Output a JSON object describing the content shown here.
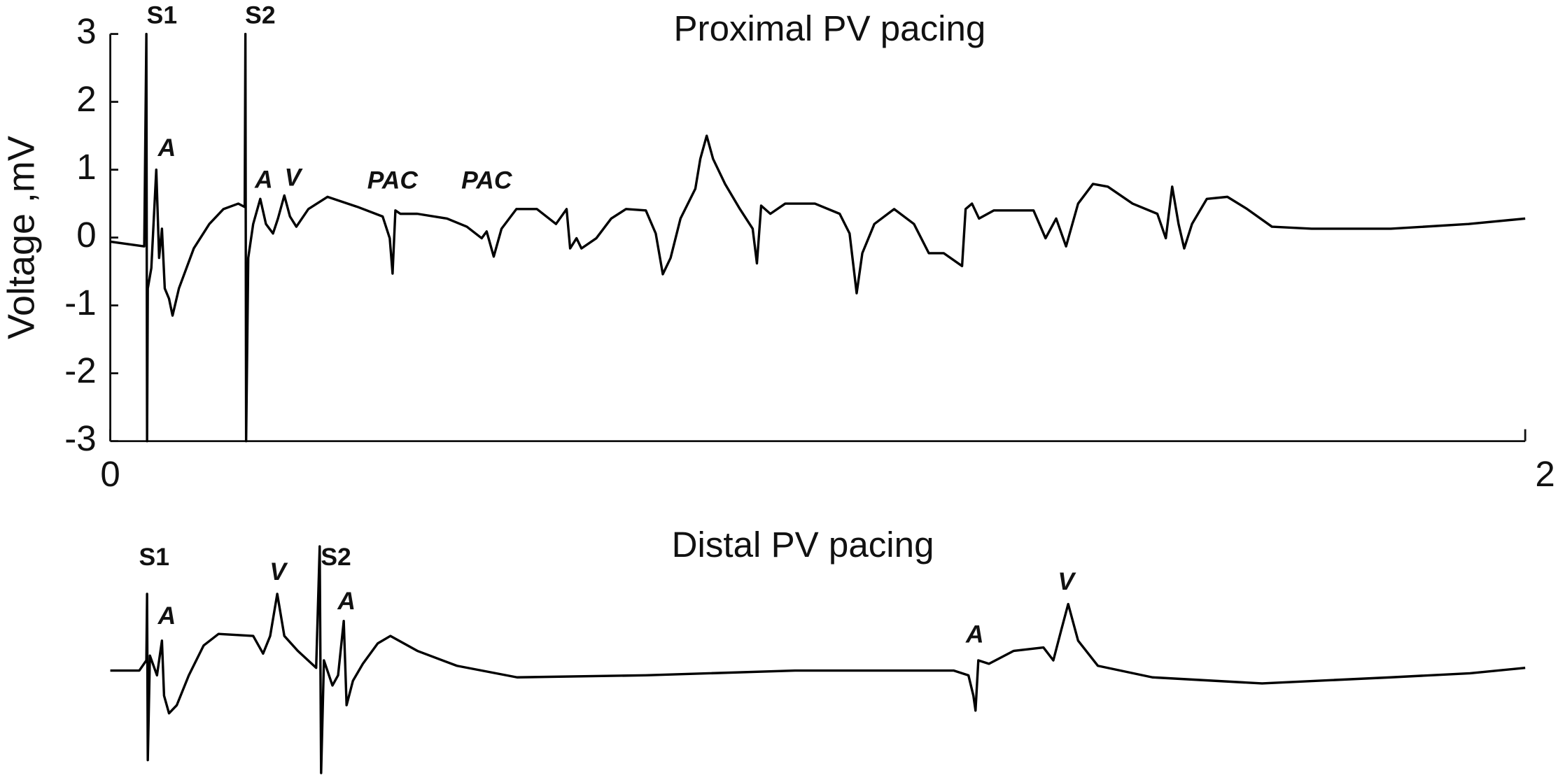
{
  "chart_data": [
    {
      "type": "line",
      "title": "Proximal PV pacing",
      "ylabel": "Voltage ,mV",
      "color": "#000000",
      "xlim": [
        0,
        2
      ],
      "xticks": [
        0,
        {
          "value": 2,
          "label": "2 s"
        }
      ],
      "ylim": [
        -3,
        3
      ],
      "yticks": [
        -3,
        -2,
        -1,
        0,
        1,
        2,
        3
      ],
      "x": [
        0,
        0.048,
        0.051,
        0.052,
        0.053,
        0.058,
        0.065,
        0.069,
        0.073,
        0.077,
        0.083,
        0.088,
        0.097,
        0.118,
        0.14,
        0.16,
        0.181,
        0.19,
        0.191,
        0.192,
        0.195,
        0.202,
        0.212,
        0.22,
        0.23,
        0.237,
        0.246,
        0.254,
        0.263,
        0.28,
        0.307,
        0.35,
        0.385,
        0.395,
        0.399,
        0.403,
        0.41,
        0.434,
        0.476,
        0.504,
        0.525,
        0.532,
        0.542,
        0.553,
        0.574,
        0.603,
        0.63,
        0.645,
        0.65,
        0.659,
        0.666,
        0.687,
        0.708,
        0.729,
        0.757,
        0.771,
        0.781,
        0.792,
        0.806,
        0.827,
        0.834,
        0.843,
        0.852,
        0.869,
        0.89,
        0.908,
        0.914,
        0.92,
        0.933,
        0.954,
        0.996,
        1.031,
        1.045,
        1.055,
        1.063,
        1.08,
        1.108,
        1.136,
        1.157,
        1.178,
        1.204,
        1.209,
        1.218,
        1.228,
        1.249,
        1.305,
        1.322,
        1.337,
        1.351,
        1.368,
        1.389,
        1.41,
        1.445,
        1.48,
        1.492,
        1.501,
        1.51,
        1.518,
        1.529,
        1.55,
        1.579,
        1.607,
        1.642,
        1.698,
        1.81,
        1.92,
        2.0
      ],
      "values": [
        -0.06,
        -0.13,
        3.0,
        -3.0,
        -0.75,
        -0.45,
        1.0,
        -0.3,
        0.13,
        -0.75,
        -0.9,
        -1.15,
        -0.75,
        -0.16,
        0.2,
        0.42,
        0.5,
        0.45,
        3.0,
        -3.0,
        -0.3,
        0.2,
        0.57,
        0.2,
        0.06,
        0.28,
        0.62,
        0.31,
        0.16,
        0.42,
        0.6,
        0.45,
        0.31,
        -0.01,
        -0.53,
        0.4,
        0.35,
        0.35,
        0.28,
        0.16,
        -0.01,
        0.09,
        -0.28,
        0.13,
        0.42,
        0.42,
        0.2,
        0.42,
        -0.16,
        -0.01,
        -0.16,
        -0.01,
        0.28,
        0.42,
        0.4,
        0.06,
        -0.54,
        -0.3,
        0.28,
        0.72,
        1.16,
        1.5,
        1.16,
        0.79,
        0.42,
        0.13,
        -0.38,
        0.47,
        0.35,
        0.5,
        0.5,
        0.35,
        0.06,
        -0.82,
        -0.23,
        0.2,
        0.42,
        0.2,
        -0.23,
        -0.23,
        -0.42,
        0.42,
        0.5,
        0.28,
        0.4,
        0.4,
        -0.01,
        0.28,
        -0.13,
        0.5,
        0.79,
        0.75,
        0.5,
        0.35,
        -0.01,
        0.75,
        0.2,
        -0.16,
        0.2,
        0.57,
        0.6,
        0.42,
        0.16,
        0.13,
        0.13,
        0.2,
        0.28
      ],
      "annotations": [
        {
          "text": "S1",
          "x": 0.073,
          "y": 3.25
        },
        {
          "text": "S2",
          "x": 0.212,
          "y": 3.25
        },
        {
          "text": "A",
          "x": 0.08,
          "y": 1.3
        },
        {
          "text": "A",
          "x": 0.217,
          "y": 0.83
        },
        {
          "text": "V",
          "x": 0.258,
          "y": 0.86
        },
        {
          "text": "PAC",
          "x": 0.399,
          "y": 0.82
        },
        {
          "text": "PAC",
          "x": 0.532,
          "y": 0.82
        }
      ]
    },
    {
      "type": "line",
      "title": "Distal PV pacing",
      "color": "#000000",
      "x": [
        0,
        0.041,
        0.051,
        0.052,
        0.053,
        0.056,
        0.066,
        0.073,
        0.076,
        0.083,
        0.094,
        0.111,
        0.132,
        0.153,
        0.202,
        0.216,
        0.226,
        0.236,
        0.246,
        0.265,
        0.291,
        0.296,
        0.298,
        0.302,
        0.314,
        0.322,
        0.33,
        0.334,
        0.343,
        0.357,
        0.378,
        0.396,
        0.434,
        0.49,
        0.575,
        0.757,
        0.968,
        1.192,
        1.213,
        1.22,
        1.223,
        1.227,
        1.242,
        1.277,
        1.319,
        1.333,
        1.344,
        1.354,
        1.368,
        1.396,
        1.473,
        1.628,
        1.81,
        1.922,
        2.0
      ],
      "values": [
        0,
        0,
        0.15,
        1.13,
        -1.32,
        0.22,
        -0.07,
        0.44,
        -0.37,
        -0.63,
        -0.51,
        -0.07,
        0.37,
        0.54,
        0.51,
        0.25,
        0.51,
        1.13,
        0.51,
        0.29,
        0.04,
        1.83,
        -1.51,
        0.15,
        -0.22,
        -0.07,
        0.73,
        -0.51,
        -0.15,
        0.1,
        0.4,
        0.51,
        0.29,
        0.07,
        -0.1,
        -0.07,
        0,
        0,
        -0.07,
        -0.37,
        -0.59,
        0.15,
        0.1,
        0.29,
        0.34,
        0.15,
        0.59,
        0.98,
        0.44,
        0.07,
        -0.1,
        -0.19,
        -0.1,
        -0.04,
        0.04
      ],
      "annotations": [
        {
          "text": "S1",
          "x": 0.062,
          "y": 1.65
        },
        {
          "text": "A",
          "x": 0.08,
          "y": 0.78
        },
        {
          "text": "V",
          "x": 0.237,
          "y": 1.43
        },
        {
          "text": "S2",
          "x": 0.319,
          "y": 1.65
        },
        {
          "text": "A",
          "x": 0.334,
          "y": 1.0
        },
        {
          "text": "A",
          "x": 1.222,
          "y": 0.51
        },
        {
          "text": "V",
          "x": 1.351,
          "y": 1.29
        }
      ]
    }
  ]
}
